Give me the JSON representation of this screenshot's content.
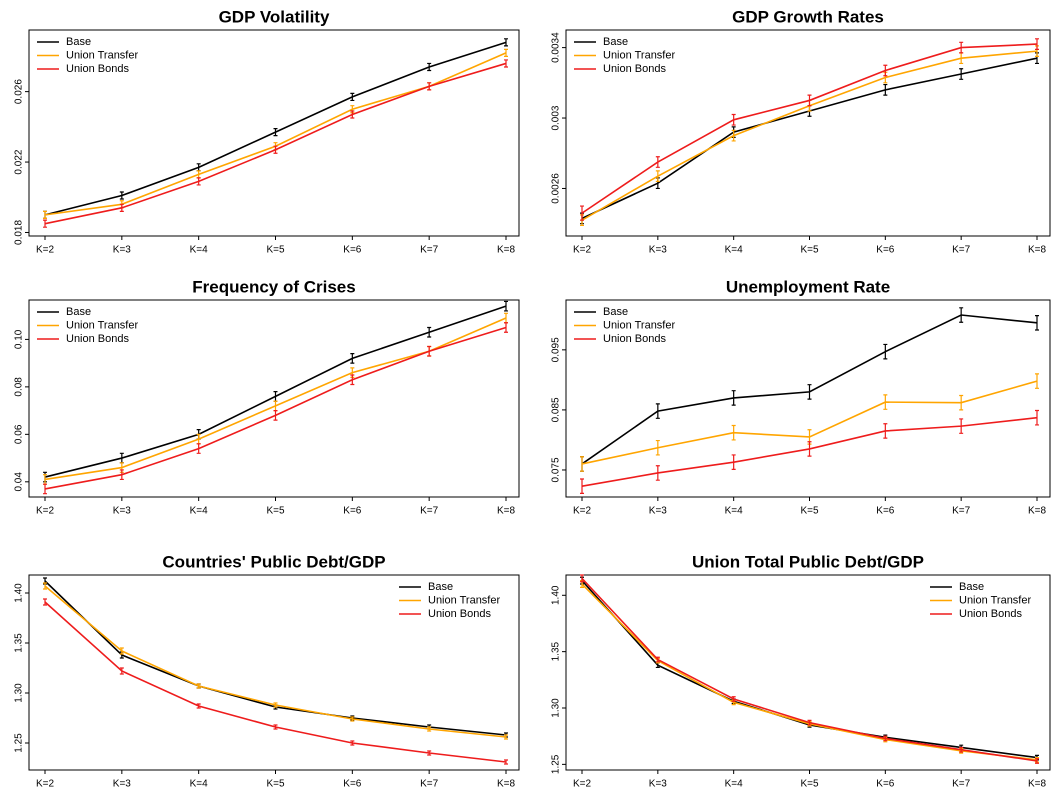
{
  "chart_data": [
    {
      "type": "line",
      "title": "GDP Volatility",
      "categories": [
        "K=2",
        "K=3",
        "K=4",
        "K=5",
        "K=6",
        "K=7",
        "K=8"
      ],
      "series": [
        {
          "name": "Base",
          "color": "#000000",
          "values": [
            0.019,
            0.0201,
            0.0217,
            0.0237,
            0.0257,
            0.0274,
            0.0288
          ],
          "errors": [
            0.0002,
            0.0002,
            0.0002,
            0.0002,
            0.0002,
            0.0002,
            0.0002
          ]
        },
        {
          "name": "Union Transfer",
          "color": "#ffa500",
          "values": [
            0.019,
            0.0196,
            0.0213,
            0.0229,
            0.025,
            0.0263,
            0.0282
          ],
          "errors": [
            0.0002,
            0.0002,
            0.0002,
            0.0002,
            0.0002,
            0.0002,
            0.0002
          ]
        },
        {
          "name": "Union Bonds",
          "color": "#ee1c1c",
          "values": [
            0.0185,
            0.0194,
            0.0209,
            0.0227,
            0.0247,
            0.0263,
            0.0276
          ],
          "errors": [
            0.0002,
            0.0002,
            0.0002,
            0.0002,
            0.0002,
            0.0002,
            0.0002
          ]
        }
      ],
      "ylim": [
        0.0178,
        0.0295
      ],
      "yticks": [
        0.018,
        0.022,
        0.026
      ],
      "legend": "top-left"
    },
    {
      "type": "line",
      "title": "GDP Growth Rates",
      "categories": [
        "K=2",
        "K=3",
        "K=4",
        "K=5",
        "K=6",
        "K=7",
        "K=8"
      ],
      "series": [
        {
          "name": "Base",
          "color": "#000000",
          "values": [
            0.00243,
            0.00263,
            0.00292,
            0.00304,
            0.00316,
            0.00325,
            0.00334
          ],
          "errors": [
            3e-05,
            3e-05,
            3e-05,
            3e-05,
            3e-05,
            3e-05,
            3e-05
          ]
        },
        {
          "name": "Union Transfer",
          "color": "#ffa500",
          "values": [
            0.00242,
            0.00267,
            0.0029,
            0.00307,
            0.00323,
            0.00334,
            0.00338
          ],
          "errors": [
            3e-05,
            3e-05,
            3e-05,
            3e-05,
            3e-05,
            3e-05,
            3e-05
          ]
        },
        {
          "name": "Union Bonds",
          "color": "#ee1c1c",
          "values": [
            0.00246,
            0.00275,
            0.00299,
            0.0031,
            0.00327,
            0.0034,
            0.00342
          ],
          "errors": [
            4e-05,
            3e-05,
            3e-05,
            3e-05,
            3e-05,
            3e-05,
            3e-05
          ]
        }
      ],
      "ylim": [
        0.00233,
        0.0035
      ],
      "yticks": [
        0.0026,
        0.003,
        0.0034
      ],
      "legend": "top-left"
    },
    {
      "type": "line",
      "title": "Frequency of Crises",
      "categories": [
        "K=2",
        "K=3",
        "K=4",
        "K=5",
        "K=6",
        "K=7",
        "K=8"
      ],
      "series": [
        {
          "name": "Base",
          "color": "#000000",
          "values": [
            0.042,
            0.05,
            0.06,
            0.076,
            0.092,
            0.103,
            0.114
          ],
          "errors": [
            0.002,
            0.002,
            0.002,
            0.002,
            0.002,
            0.002,
            0.002
          ]
        },
        {
          "name": "Union Transfer",
          "color": "#ffa500",
          "values": [
            0.041,
            0.046,
            0.058,
            0.072,
            0.086,
            0.095,
            0.109
          ],
          "errors": [
            0.002,
            0.002,
            0.002,
            0.002,
            0.002,
            0.002,
            0.002
          ]
        },
        {
          "name": "Union Bonds",
          "color": "#ee1c1c",
          "values": [
            0.037,
            0.043,
            0.054,
            0.068,
            0.083,
            0.095,
            0.105
          ],
          "errors": [
            0.002,
            0.002,
            0.002,
            0.002,
            0.002,
            0.002,
            0.002
          ]
        }
      ],
      "ylim": [
        0.0336,
        0.1166
      ],
      "yticks": [
        0.04,
        0.06,
        0.08,
        {
          "value": 0.1,
          "label": "0.10"
        }
      ],
      "legend": "top-left"
    },
    {
      "type": "line",
      "title": "Unemployment Rate",
      "categories": [
        "K=2",
        "K=3",
        "K=4",
        "K=5",
        "K=6",
        "K=7",
        "K=8"
      ],
      "series": [
        {
          "name": "Base",
          "color": "#000000",
          "values": [
            0.076,
            0.0848,
            0.087,
            0.088,
            0.0947,
            0.1008,
            0.0995
          ],
          "errors": [
            0.0012,
            0.0012,
            0.0012,
            0.0012,
            0.0012,
            0.0012,
            0.0012
          ]
        },
        {
          "name": "Union Transfer",
          "color": "#ffa500",
          "values": [
            0.076,
            0.0787,
            0.0812,
            0.0805,
            0.0863,
            0.0862,
            0.0898
          ],
          "errors": [
            0.0012,
            0.0012,
            0.0012,
            0.0012,
            0.0012,
            0.0012,
            0.0012
          ]
        },
        {
          "name": "Union Bonds",
          "color": "#ee1c1c",
          "values": [
            0.0723,
            0.0745,
            0.0763,
            0.0785,
            0.0815,
            0.0823,
            0.0837
          ],
          "errors": [
            0.0012,
            0.0012,
            0.0012,
            0.0012,
            0.0012,
            0.0012,
            0.0012
          ]
        }
      ],
      "ylim": [
        0.0705,
        0.1033
      ],
      "yticks": [
        0.075,
        0.085,
        0.095
      ],
      "legend": "top-left"
    },
    {
      "type": "line",
      "title": "Countries' Public Debt/GDP",
      "categories": [
        "K=2",
        "K=3",
        "K=4",
        "K=5",
        "K=6",
        "K=7",
        "K=8"
      ],
      "series": [
        {
          "name": "Base",
          "color": "#000000",
          "values": [
            1.412,
            1.338,
            1.307,
            1.286,
            1.275,
            1.266,
            1.258
          ],
          "errors": [
            0.003,
            0.003,
            0.002,
            0.002,
            0.002,
            0.002,
            0.002
          ]
        },
        {
          "name": "Union Transfer",
          "color": "#ffa500",
          "values": [
            1.407,
            1.342,
            1.307,
            1.288,
            1.274,
            1.264,
            1.256
          ],
          "errors": [
            0.003,
            0.003,
            0.002,
            0.002,
            0.002,
            0.002,
            0.002
          ]
        },
        {
          "name": "Union Bonds",
          "color": "#ee1c1c",
          "values": [
            1.391,
            1.322,
            1.287,
            1.266,
            1.25,
            1.24,
            1.231
          ],
          "errors": [
            0.003,
            0.003,
            0.002,
            0.002,
            0.002,
            0.002,
            0.002
          ]
        }
      ],
      "ylim": [
        1.223,
        1.418
      ],
      "yticks": [
        1.25,
        {
          "value": 1.3,
          "label": "1.30"
        },
        1.35,
        {
          "value": 1.4,
          "label": "1.40"
        }
      ],
      "legend": "top-right"
    },
    {
      "type": "line",
      "title": "Union Total Public Debt/GDP",
      "categories": [
        "K=2",
        "K=3",
        "K=4",
        "K=5",
        "K=6",
        "K=7",
        "K=8"
      ],
      "series": [
        {
          "name": "Base",
          "color": "#000000",
          "values": [
            1.413,
            1.338,
            1.306,
            1.285,
            1.274,
            1.265,
            1.256
          ],
          "errors": [
            0.003,
            0.002,
            0.002,
            0.002,
            0.002,
            0.002,
            0.002
          ]
        },
        {
          "name": "Union Transfer",
          "color": "#ffa500",
          "values": [
            1.41,
            1.342,
            1.305,
            1.286,
            1.272,
            1.262,
            1.254
          ],
          "errors": [
            0.003,
            0.002,
            0.002,
            0.002,
            0.002,
            0.002,
            0.002
          ]
        },
        {
          "name": "Union Bonds",
          "color": "#ee1c1c",
          "values": [
            1.415,
            1.343,
            1.308,
            1.287,
            1.273,
            1.263,
            1.253
          ],
          "errors": [
            0.003,
            0.002,
            0.002,
            0.002,
            0.002,
            0.002,
            0.002
          ]
        }
      ],
      "ylim": [
        1.245,
        1.418
      ],
      "yticks": [
        1.25,
        {
          "value": 1.3,
          "label": "1.30"
        },
        1.35,
        {
          "value": 1.4,
          "label": "1.40"
        }
      ],
      "legend": "top-right"
    }
  ]
}
